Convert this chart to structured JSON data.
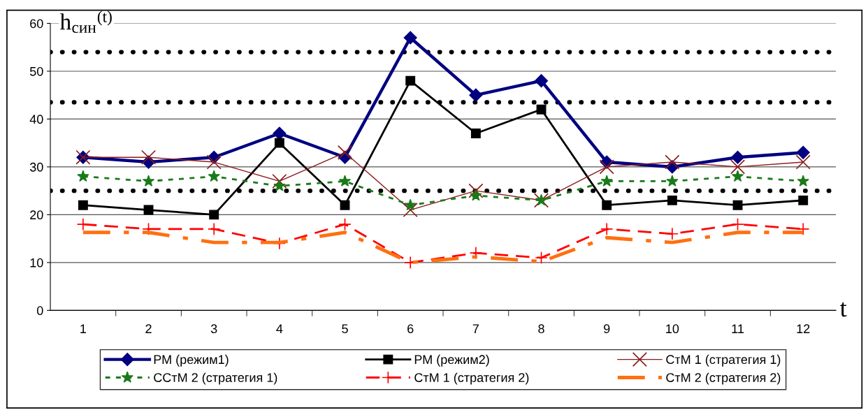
{
  "chart_data": {
    "type": "line",
    "ylabel": "h$_{син}$$^{(t)}$",
    "xlabel": "t",
    "categories": [
      "1",
      "2",
      "3",
      "4",
      "5",
      "6",
      "7",
      "8",
      "9",
      "10",
      "11",
      "12"
    ],
    "ylim": [
      0,
      60
    ],
    "yticks": [
      0,
      10,
      20,
      30,
      40,
      50,
      60
    ],
    "grid": "y",
    "legend": "bottom",
    "series": [
      {
        "name": "РМ (режим1)",
        "color": "#000080",
        "marker": "diamond",
        "line_style": "solid",
        "values": [
          32,
          31,
          32,
          37,
          32,
          57,
          45,
          48,
          31,
          30,
          32,
          33
        ]
      },
      {
        "name": "РМ (режим2)",
        "color": "#000000",
        "marker": "square",
        "line_style": "solid",
        "values": [
          22,
          21,
          20,
          35,
          22,
          48,
          37,
          42,
          22,
          23,
          22,
          23
        ]
      },
      {
        "name": "СтМ 1 (стратегия 1)",
        "color": "#8b1a1a",
        "marker": "cross",
        "line_style": "solid",
        "values": [
          32,
          32,
          31,
          27,
          33,
          21,
          25,
          23,
          30,
          31,
          30,
          31
        ]
      },
      {
        "name": "ССтМ 2 (стратегия 1)",
        "color": "#1a7a1a",
        "marker": "star",
        "line_style": "dotted",
        "values": [
          28,
          27,
          28,
          26,
          27,
          22,
          24,
          23,
          27,
          27,
          28,
          27
        ]
      },
      {
        "name": "СтМ 1 (стратегия 2)",
        "color": "#ff0000",
        "marker": "plus",
        "line_style": "dashed",
        "values": [
          18,
          17,
          17,
          14,
          18,
          10,
          12,
          11,
          17,
          16,
          18,
          17
        ]
      },
      {
        "name": "СтМ 2 (стратегия 2)",
        "color": "#ff7010",
        "marker": "none",
        "line_style": "dashdot",
        "values": [
          16.3,
          16.3,
          14.2,
          14.2,
          16.3,
          10,
          11.2,
          10.2,
          15.2,
          14.2,
          16.3,
          16.3
        ]
      }
    ],
    "ref_lines": [
      {
        "axis": "y",
        "value": 54,
        "color": "#000000",
        "line_style": "dotted"
      },
      {
        "axis": "y",
        "value": 43.5,
        "color": "#000000",
        "line_style": "dotted"
      },
      {
        "axis": "y",
        "value": 25,
        "color": "#000000",
        "line_style": "dotted"
      }
    ]
  }
}
